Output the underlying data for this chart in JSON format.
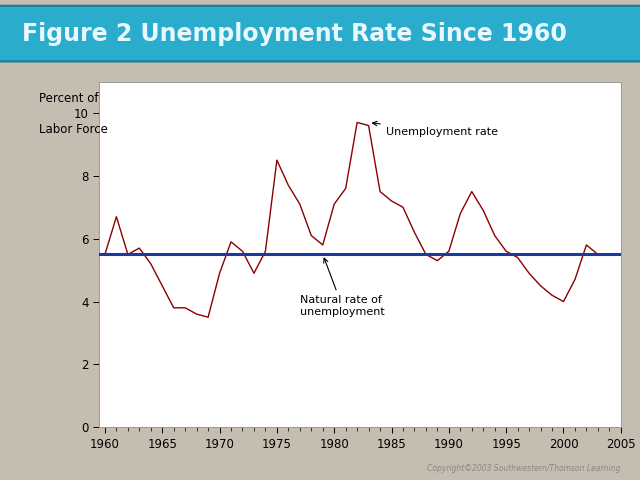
{
  "title": "Figure 2 Unemployment Rate Since 1960",
  "ylabel_line1": "Percent of",
  "ylabel_line2": "Labor Force",
  "background_color": "#c5bdb0",
  "plot_bg_color": "#ffffff",
  "title_bg_color": "#2aaccc",
  "title_text_color": "#e8f8ff",
  "natural_rate": 5.5,
  "years": [
    1960,
    1961,
    1962,
    1963,
    1964,
    1965,
    1966,
    1967,
    1968,
    1969,
    1970,
    1971,
    1972,
    1973,
    1974,
    1975,
    1976,
    1977,
    1978,
    1979,
    1980,
    1981,
    1982,
    1983,
    1984,
    1985,
    1986,
    1987,
    1988,
    1989,
    1990,
    1991,
    1992,
    1993,
    1994,
    1995,
    1996,
    1997,
    1998,
    1999,
    2000,
    2001,
    2002,
    2003
  ],
  "unemployment": [
    5.5,
    6.7,
    5.5,
    5.7,
    5.2,
    4.5,
    3.8,
    3.8,
    3.6,
    3.5,
    4.9,
    5.9,
    5.6,
    4.9,
    5.6,
    8.5,
    7.7,
    7.1,
    6.1,
    5.8,
    7.1,
    7.6,
    9.7,
    9.6,
    7.5,
    7.2,
    7.0,
    6.2,
    5.5,
    5.3,
    5.6,
    6.8,
    7.5,
    6.9,
    6.1,
    5.6,
    5.4,
    4.9,
    4.5,
    4.2,
    4.0,
    4.7,
    5.8,
    5.5
  ],
  "line_color": "#8b0000",
  "natural_line_color": "#1a3a9f",
  "annotation_unemployment": "Unemployment rate",
  "annotation_natural": "Natural rate of\nunemployment",
  "annotation_unemp_point": [
    1983,
    9.7
  ],
  "annotation_unemp_text": [
    1984.5,
    9.4
  ],
  "annotation_natural_point": [
    1979,
    5.5
  ],
  "annotation_natural_text": [
    1977,
    4.2
  ],
  "xlim": [
    1959.5,
    2005
  ],
  "ylim": [
    0,
    11
  ],
  "yticks": [
    0,
    2,
    4,
    6,
    8,
    10
  ],
  "xticks": [
    1960,
    1965,
    1970,
    1975,
    1980,
    1985,
    1990,
    1995,
    2000,
    2005
  ],
  "copyright_text": "Copyright©2003 Southwestern/Thomson Learning",
  "title_fontsize": 17,
  "axis_fontsize": 8.5,
  "annotation_fontsize": 8
}
